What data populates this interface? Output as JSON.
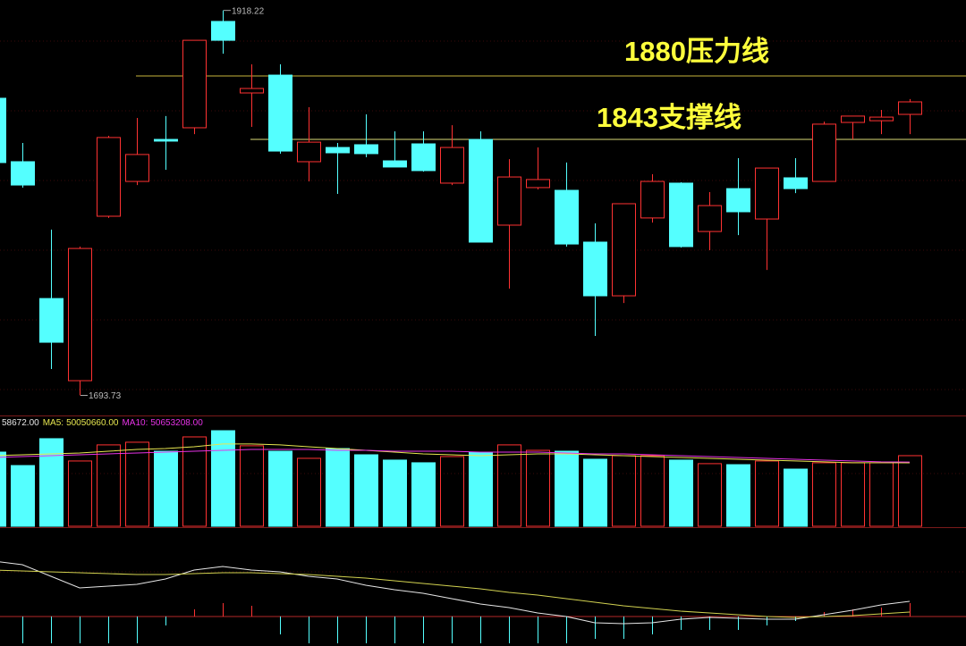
{
  "chart_data": [
    {
      "type": "candlestick",
      "open": [
        1867.0,
        1830.0,
        1750.2,
        1702.3,
        1798.2,
        1818.5,
        1843.0,
        1849.8,
        1911.8,
        1870.1,
        1880.5,
        1830.0,
        1838.3,
        1839.9,
        1830.5,
        1840.4,
        1817.5,
        1843.0,
        1793.0,
        1814.9,
        1813.3,
        1783.1,
        1751.8,
        1797.2,
        1817.5,
        1789.3,
        1814.3,
        1796.6,
        1820.6,
        1818.5,
        1852.9,
        1853.9,
        1857.6
      ],
      "high": [
        1867.0,
        1840.9,
        1790.4,
        1780.5,
        1845.1,
        1855.5,
        1856.6,
        1900.8,
        1918.22,
        1886.8,
        1886.8,
        1861.8,
        1840.9,
        1857.6,
        1847.7,
        1847.7,
        1851.3,
        1847.7,
        1831.5,
        1838.3,
        1829.5,
        1794.0,
        1805.5,
        1822.7,
        1818.0,
        1812.3,
        1832.1,
        1826.3,
        1832.1,
        1853.4,
        1856.6,
        1860.2,
        1866.5
      ],
      "low": [
        1829.5,
        1814.9,
        1709.1,
        1693.73,
        1797.2,
        1816.4,
        1825.3,
        1846.1,
        1893.0,
        1850.3,
        1834.7,
        1818.5,
        1811.2,
        1832.6,
        1826.9,
        1824.2,
        1816.4,
        1783.1,
        1756.0,
        1813.8,
        1780.5,
        1728.4,
        1747.6,
        1794.5,
        1779.9,
        1778.4,
        1787.2,
        1766.9,
        1811.7,
        1818.5,
        1843.0,
        1846.1,
        1846.1
      ],
      "close": [
        1829.5,
        1816.4,
        1724.7,
        1779.4,
        1844.1,
        1834.2,
        1842.0,
        1900.8,
        1900.8,
        1872.7,
        1836.2,
        1841.4,
        1835.2,
        1834.7,
        1826.9,
        1824.8,
        1838.3,
        1783.1,
        1821.1,
        1819.6,
        1782.0,
        1751.8,
        1805.5,
        1818.5,
        1780.5,
        1804.4,
        1800.8,
        1826.3,
        1814.3,
        1851.9,
        1856.6,
        1856.0,
        1864.9
      ],
      "up_color": "#ff3232",
      "down_color": "#54ffff",
      "ylim": [
        1682,
        1924.3
      ],
      "lines": [
        {
          "value": 1880,
          "label": "1880压力线",
          "color": "#c8b43c",
          "text_color": "#ffff3c"
        },
        {
          "value": 1843,
          "label": "1843支撑线",
          "color": "#dcdc78",
          "text_color": "#ffff3c"
        }
      ]
    },
    {
      "type": "bar",
      "header_text": "58672.00",
      "values": [
        58500000,
        47900000,
        69100000,
        51500000,
        64200000,
        66300000,
        59200000,
        70500000,
        75400000,
        63500000,
        59200000,
        53600000,
        61300000,
        56400000,
        52200000,
        50100000,
        55000000,
        58500000,
        64200000,
        59900000,
        59200000,
        52900000,
        55700000,
        55700000,
        52200000,
        49400000,
        48600000,
        51500000,
        45100000,
        50100000,
        50100000,
        50100000,
        55700000
      ],
      "ylim": [
        0,
        87400000
      ],
      "series": [
        {
          "name": "MA5:",
          "color": "#e6e650",
          "values": [
            55700000,
            56400000,
            57100000,
            57800000,
            59200000,
            60600000,
            61300000,
            62700000,
            64900000,
            64900000,
            64200000,
            62700000,
            61300000,
            59900000,
            58500000,
            57100000,
            56400000,
            55700000,
            56400000,
            57100000,
            57100000,
            56400000,
            55700000,
            55000000,
            54300000,
            53600000,
            52900000,
            52200000,
            51500000,
            50800000,
            50100000,
            50100000,
            50050660
          ],
          "value_labels": [
            null,
            null,
            null,
            null,
            null,
            null,
            null,
            null,
            null,
            null,
            null,
            null,
            null,
            null,
            null,
            null,
            null,
            null,
            null,
            null,
            null,
            null,
            null,
            null,
            null,
            null,
            null,
            null,
            null,
            null,
            null,
            null,
            "50050660.00"
          ]
        },
        {
          "name": "MA10:",
          "color": "#e632e6",
          "values": [
            54300000,
            55000000,
            55700000,
            56400000,
            57100000,
            57800000,
            58500000,
            59200000,
            59900000,
            60600000,
            60600000,
            60600000,
            59900000,
            59900000,
            59200000,
            59200000,
            59200000,
            58500000,
            58500000,
            58500000,
            57800000,
            57100000,
            57100000,
            56400000,
            55700000,
            55000000,
            54300000,
            53600000,
            52900000,
            52200000,
            51500000,
            50800000,
            50653208
          ],
          "value_labels": [
            null,
            null,
            null,
            null,
            null,
            null,
            null,
            null,
            null,
            null,
            null,
            null,
            null,
            null,
            null,
            null,
            null,
            null,
            null,
            null,
            null,
            null,
            null,
            null,
            null,
            null,
            null,
            null,
            null,
            null,
            null,
            null,
            "50653208.00"
          ]
        }
      ]
    },
    {
      "type": "line",
      "ylim": [
        -33,
        94
      ],
      "series": [
        {
          "color": "#e6e6e6",
          "values": [
            62,
            58,
            45,
            32,
            34,
            36,
            42,
            52,
            56,
            52,
            50,
            45,
            42,
            35,
            30,
            26,
            20,
            14,
            10,
            4,
            0,
            -7,
            -8,
            -7,
            -3,
            -1,
            -2,
            -3,
            -3,
            2,
            7,
            13,
            17
          ]
        },
        {
          "color": "#d2d250",
          "values": [
            52,
            51,
            50,
            49,
            48,
            47,
            47,
            48,
            49,
            49,
            48,
            47,
            45,
            43,
            40,
            37,
            34,
            31,
            27,
            24,
            20,
            16,
            12,
            9,
            6,
            4,
            2,
            0,
            -1,
            0,
            1,
            3,
            5
          ]
        }
      ],
      "histogram": [
        -20,
        -30,
        -30,
        -30,
        -30,
        -30,
        -10,
        8,
        15,
        12,
        -20,
        -30,
        -30,
        -30,
        -30,
        -30,
        -30,
        -30,
        -30,
        -30,
        -30,
        -25,
        -25,
        -20,
        -15,
        -15,
        -15,
        -10,
        -5,
        5,
        8,
        10,
        15
      ],
      "up_color": "#ff3232",
      "down_color": "#54ffff"
    }
  ]
}
